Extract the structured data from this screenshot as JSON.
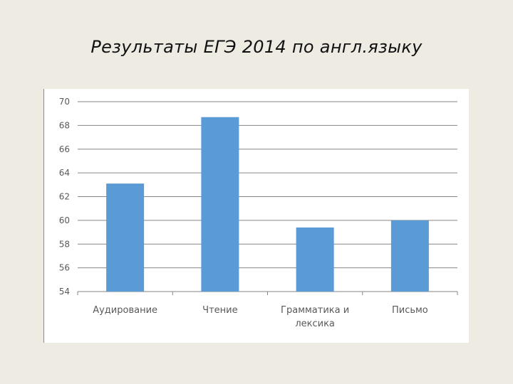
{
  "slide": {
    "title": "Результаты ЕГЭ 2014 по англ.языку"
  },
  "chart_data": {
    "type": "bar",
    "categories": [
      [
        "Аудирование"
      ],
      [
        "Чтение"
      ],
      [
        "Грамматика и",
        "лексика"
      ],
      [
        "Письмо"
      ]
    ],
    "values": [
      63.1,
      68.7,
      59.4,
      60.0
    ],
    "ylim": [
      54,
      70
    ],
    "yticks": [
      54,
      56,
      58,
      60,
      62,
      64,
      66,
      68,
      70
    ],
    "grid": true,
    "bar_color": "#5b9bd5",
    "grid_color": "#868686"
  }
}
